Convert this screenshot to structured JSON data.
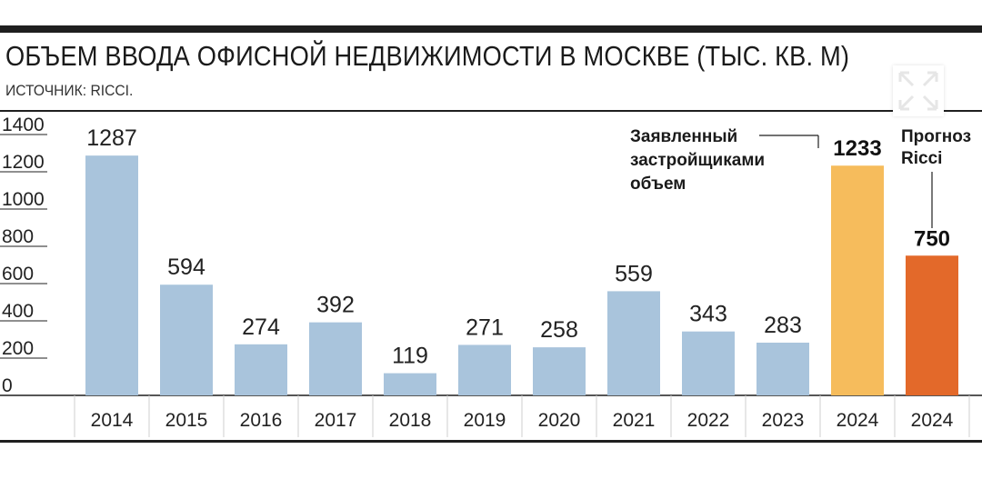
{
  "header": {
    "title": "ОБЪЕМ ВВОДА ОФИСНОЙ НЕДВИЖИМОСТИ В МОСКВЕ (ТЫС. КВ. М)",
    "source": "ИСТОЧНИК: RICCI."
  },
  "colors": {
    "regular_bar": "#a9c4dc",
    "declared_bar": "#f6bc5c",
    "forecast_bar": "#e3692a",
    "rules": "#1f1f1f"
  },
  "chart_data": {
    "type": "bar",
    "title": "ОБЪЕМ ВВОДА ОФИСНОЙ НЕДВИЖИМОСТИ В МОСКВЕ (ТЫС. КВ. М)",
    "xlabel": "",
    "ylabel": "",
    "ylim": [
      0,
      1400
    ],
    "yticks": [
      0,
      200,
      400,
      600,
      800,
      1000,
      1200,
      1400
    ],
    "grid": "horizontal, left edge only",
    "categories": [
      "2014",
      "2015",
      "2016",
      "2017",
      "2018",
      "2019",
      "2020",
      "2021",
      "2022",
      "2023",
      "2024",
      "2024"
    ],
    "values": [
      1287,
      594,
      274,
      392,
      119,
      271,
      258,
      559,
      343,
      283,
      1233,
      750
    ],
    "value_labels": [
      "1287",
      "594",
      "274",
      "392",
      "119",
      "271",
      "258",
      "559",
      "343",
      "283",
      "1233",
      "750"
    ],
    "bar_styles": [
      "regular",
      "regular",
      "regular",
      "regular",
      "regular",
      "regular",
      "regular",
      "regular",
      "regular",
      "regular",
      "declared",
      "forecast"
    ],
    "annotations": {
      "declared": [
        "Заявленный",
        "застройщиками",
        "объем"
      ],
      "forecast": [
        "Прогноз",
        "Ricci"
      ]
    }
  }
}
